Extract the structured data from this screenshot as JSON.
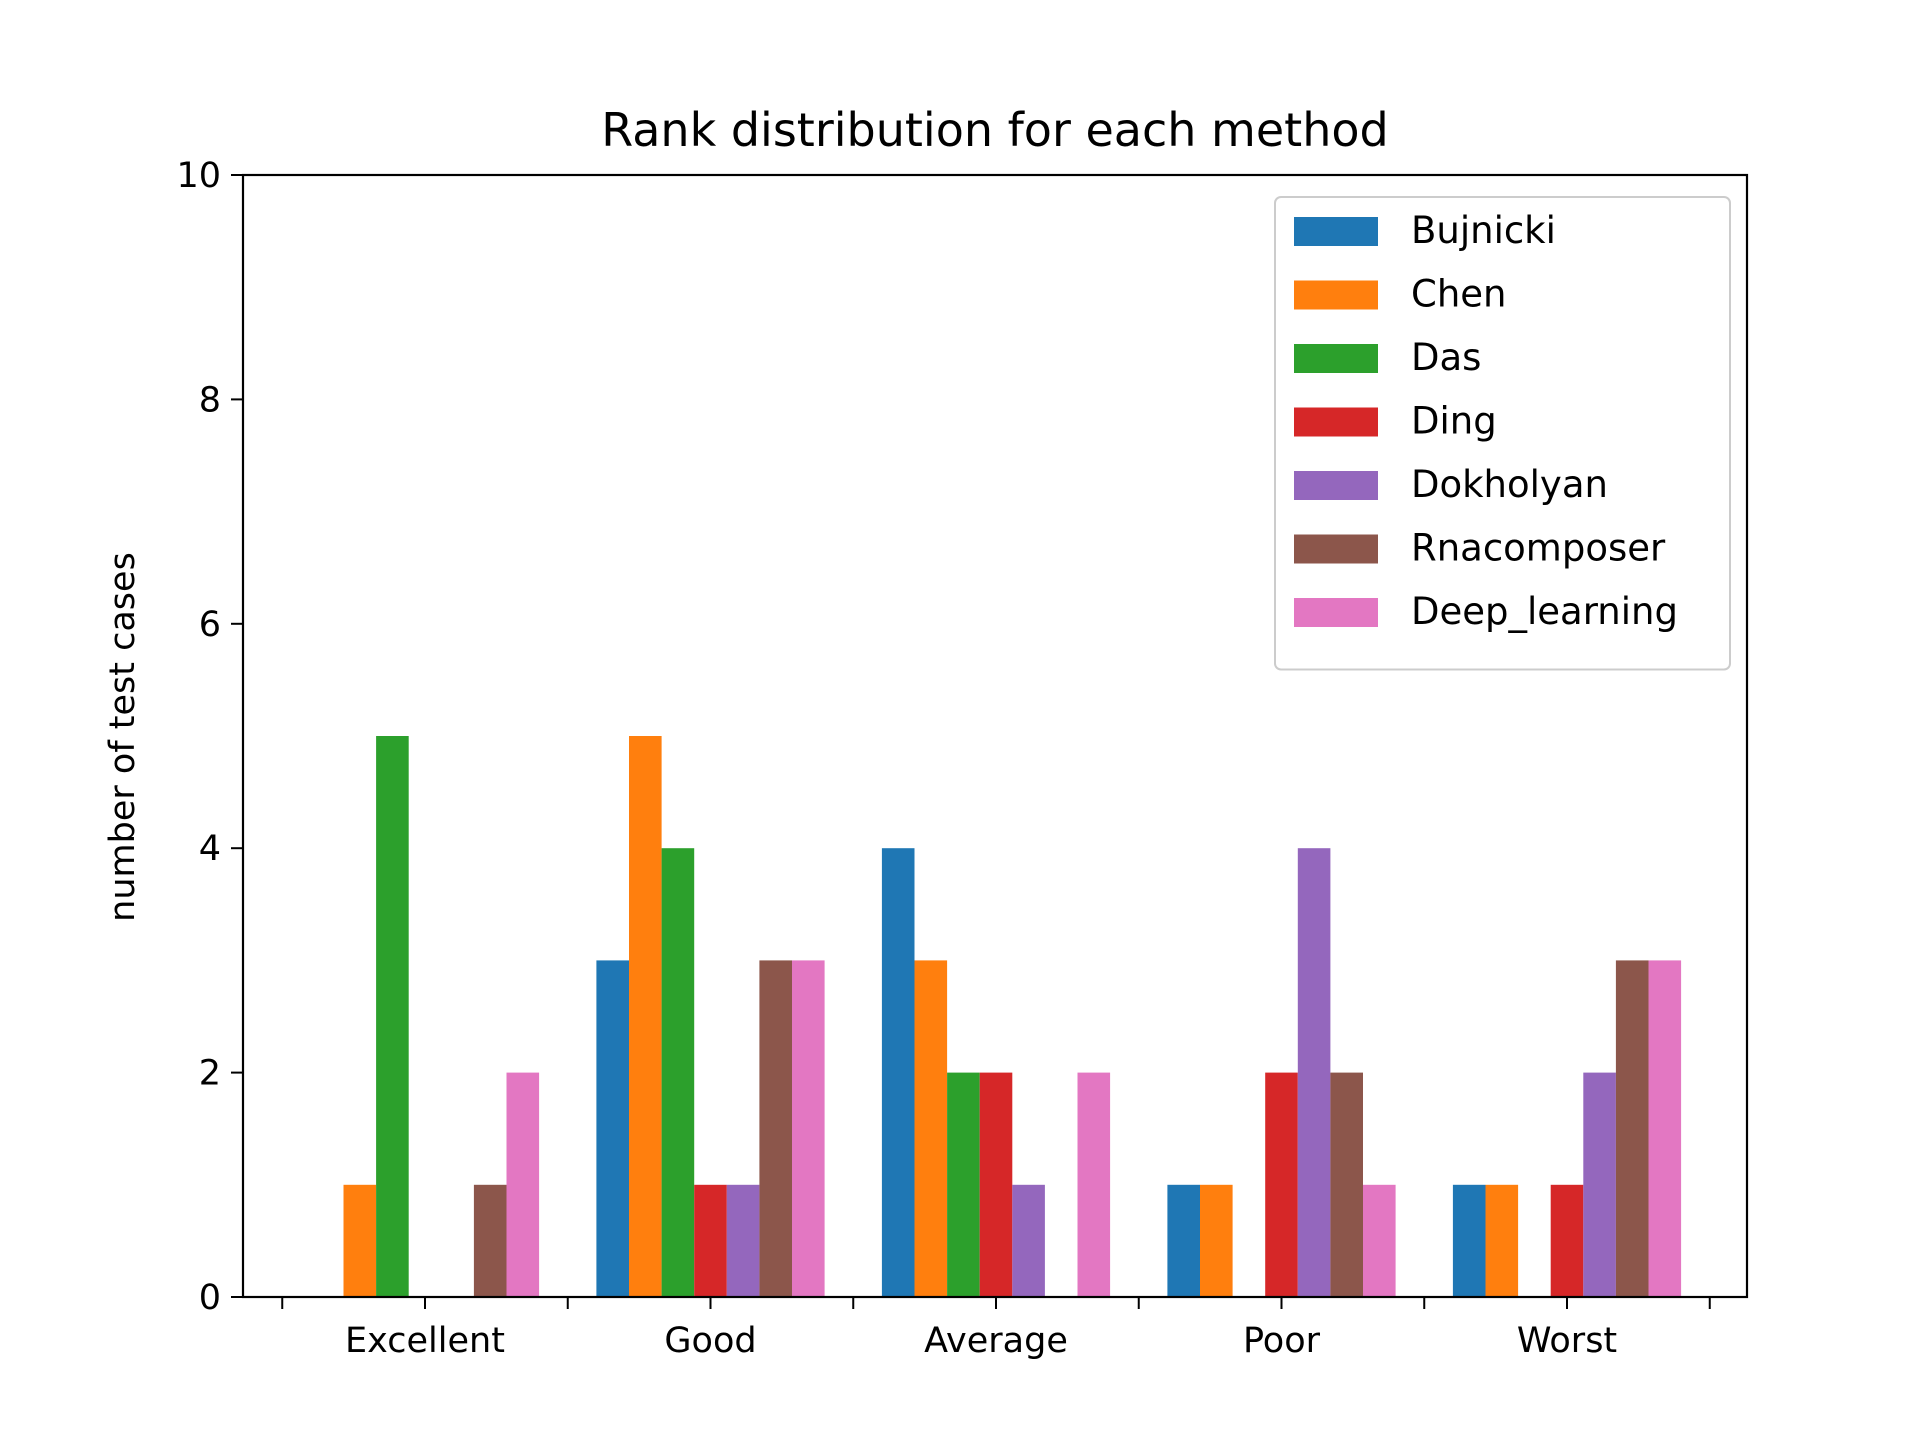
{
  "chart_data": {
    "type": "bar",
    "title": "Rank distribution for each method",
    "xlabel": "",
    "ylabel": "number of test cases",
    "categories": [
      "Excellent",
      "Good",
      "Average",
      "Poor",
      "Worst"
    ],
    "ylim": [
      0,
      10
    ],
    "yticks": [
      0,
      2,
      4,
      6,
      8,
      10
    ],
    "ytick_labels": [
      "0",
      "2",
      "4",
      "6",
      "8",
      "10"
    ],
    "grid": false,
    "legend_position": "top-right",
    "series": [
      {
        "name": "Bujnicki",
        "color": "#1f77b4",
        "values": [
          0,
          3,
          4,
          1,
          1
        ]
      },
      {
        "name": "Chen",
        "color": "#ff7f0e",
        "values": [
          1,
          5,
          3,
          1,
          1
        ]
      },
      {
        "name": "Das",
        "color": "#2ca02c",
        "values": [
          5,
          4,
          2,
          0,
          0
        ]
      },
      {
        "name": "Ding",
        "color": "#d62728",
        "values": [
          0,
          1,
          2,
          2,
          1
        ]
      },
      {
        "name": "Dokholyan",
        "color": "#9467bd",
        "values": [
          0,
          1,
          1,
          4,
          2
        ]
      },
      {
        "name": "Rnacomposer",
        "color": "#8c564b",
        "values": [
          1,
          3,
          0,
          2,
          3
        ]
      },
      {
        "name": "Deep_learning",
        "color": "#e377c2",
        "values": [
          2,
          3,
          2,
          1,
          3
        ]
      }
    ]
  }
}
